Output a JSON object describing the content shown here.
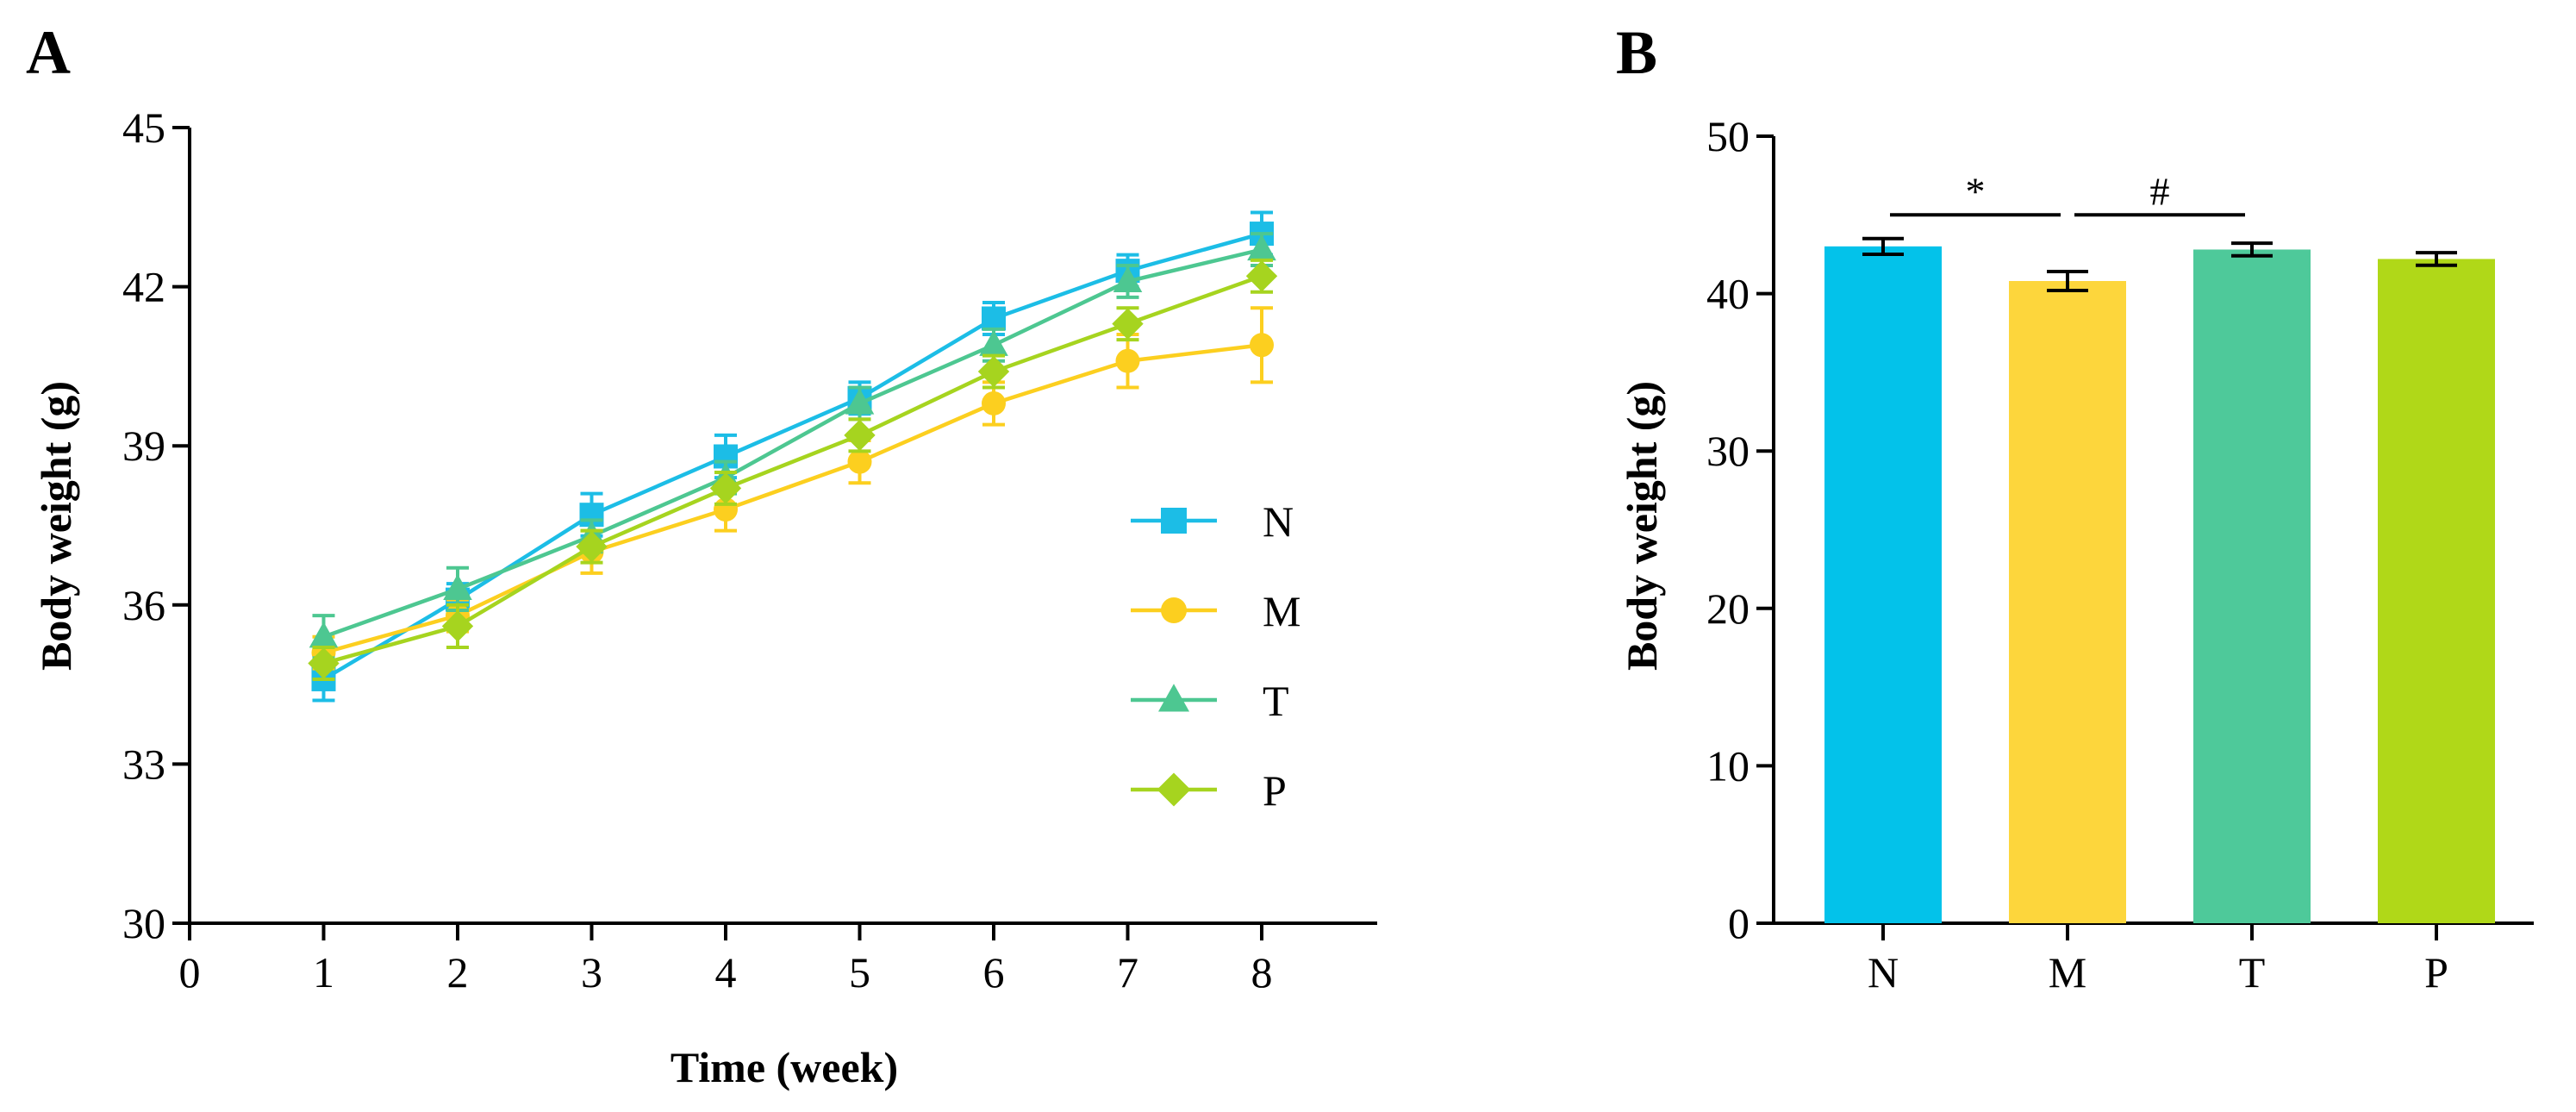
{
  "chart_data": [
    {
      "panel": "A",
      "type": "line",
      "title": "",
      "xlabel": "Time (week)",
      "ylabel": "Body weight (g)",
      "xlim": [
        0,
        9
      ],
      "ylim": [
        30,
        45
      ],
      "xticks": [
        "0",
        "1",
        "2",
        "3",
        "4",
        "5",
        "6",
        "7",
        "8"
      ],
      "yticks": [
        "30",
        "33",
        "36",
        "39",
        "42",
        "45"
      ],
      "x": [
        1,
        2,
        3,
        4,
        5,
        6,
        7,
        8
      ],
      "legend_position": "right",
      "series": [
        {
          "name": "N",
          "color": "#1cbde6",
          "marker": "square",
          "values": [
            34.6,
            36.1,
            37.7,
            38.8,
            39.9,
            41.4,
            42.3,
            43.0
          ],
          "errors": [
            0.4,
            0.3,
            0.4,
            0.4,
            0.3,
            0.3,
            0.3,
            0.4
          ]
        },
        {
          "name": "M",
          "color": "#fccf1f",
          "marker": "circle",
          "values": [
            35.1,
            35.8,
            37.0,
            37.8,
            38.7,
            39.8,
            40.6,
            40.9
          ],
          "errors": [
            0.3,
            0.3,
            0.4,
            0.4,
            0.4,
            0.4,
            0.5,
            0.7
          ]
        },
        {
          "name": "T",
          "color": "#4dc791",
          "marker": "triangle",
          "values": [
            35.4,
            36.3,
            37.3,
            38.4,
            39.8,
            40.9,
            42.1,
            42.7
          ],
          "errors": [
            0.4,
            0.4,
            0.3,
            0.3,
            0.3,
            0.3,
            0.3,
            0.3
          ]
        },
        {
          "name": "P",
          "color": "#a6d41f",
          "marker": "diamond",
          "values": [
            34.9,
            35.6,
            37.1,
            38.2,
            39.2,
            40.4,
            41.3,
            42.2
          ],
          "errors": [
            0.3,
            0.4,
            0.3,
            0.3,
            0.3,
            0.3,
            0.3,
            0.3
          ]
        }
      ]
    },
    {
      "panel": "B",
      "type": "bar",
      "title": "",
      "xlabel": "",
      "ylabel": "Body weight (g)",
      "ylim": [
        0,
        50
      ],
      "yticks": [
        "0",
        "10",
        "20",
        "30",
        "40",
        "50"
      ],
      "categories": [
        "N",
        "M",
        "T",
        "P"
      ],
      "values": [
        43.0,
        40.8,
        42.8,
        42.2
      ],
      "errors": [
        0.5,
        0.6,
        0.4,
        0.4
      ],
      "colors": [
        "#03c2ea",
        "#fdd63c",
        "#4ec99a",
        "#b0d818"
      ],
      "annotations": [
        {
          "label": "*",
          "from": "N",
          "to": "M",
          "y": 45.0
        },
        {
          "label": "#",
          "from": "M",
          "to": "T",
          "y": 45.0
        }
      ]
    }
  ]
}
